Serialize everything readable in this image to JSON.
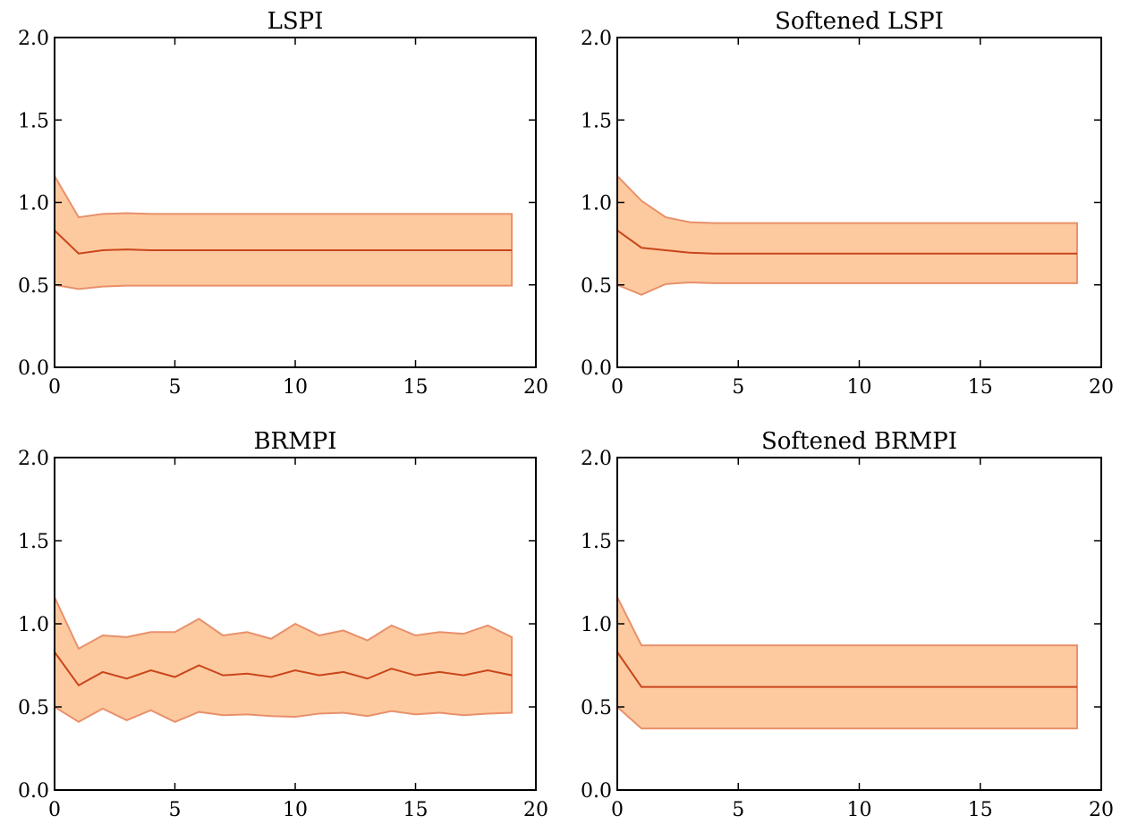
{
  "chart_data": [
    {
      "type": "line",
      "title": "LSPI",
      "xlim": [
        0,
        20
      ],
      "ylim": [
        0.0,
        2.0
      ],
      "xticks": [
        "0",
        "5",
        "10",
        "15",
        "20"
      ],
      "yticks": [
        "0.0",
        "0.5",
        "1.0",
        "1.5",
        "2.0"
      ],
      "grid": false,
      "series": [
        {
          "x": [
            0,
            1,
            2,
            3,
            4,
            5,
            6,
            7,
            8,
            9,
            10,
            11,
            12,
            13,
            14,
            15,
            16,
            17,
            18,
            19
          ],
          "mean": [
            0.83,
            0.69,
            0.71,
            0.715,
            0.71,
            0.71,
            0.71,
            0.71,
            0.71,
            0.71,
            0.71,
            0.71,
            0.71,
            0.71,
            0.71,
            0.71,
            0.71,
            0.71,
            0.71,
            0.71
          ],
          "upper": [
            1.16,
            0.91,
            0.93,
            0.935,
            0.93,
            0.93,
            0.93,
            0.93,
            0.93,
            0.93,
            0.93,
            0.93,
            0.93,
            0.93,
            0.93,
            0.93,
            0.93,
            0.93,
            0.93,
            0.93
          ],
          "lower": [
            0.5,
            0.475,
            0.49,
            0.495,
            0.495,
            0.495,
            0.495,
            0.495,
            0.495,
            0.495,
            0.495,
            0.495,
            0.495,
            0.495,
            0.495,
            0.495,
            0.495,
            0.495,
            0.495,
            0.495
          ]
        }
      ]
    },
    {
      "type": "line",
      "title": "Softened LSPI",
      "xlim": [
        0,
        20
      ],
      "ylim": [
        0.0,
        2.0
      ],
      "xticks": [
        "0",
        "5",
        "10",
        "15",
        "20"
      ],
      "yticks": [
        "0.0",
        "0.5",
        "1.0",
        "1.5",
        "2.0"
      ],
      "grid": false,
      "series": [
        {
          "x": [
            0,
            1,
            2,
            3,
            4,
            5,
            6,
            7,
            8,
            9,
            10,
            11,
            12,
            13,
            14,
            15,
            16,
            17,
            18,
            19
          ],
          "mean": [
            0.83,
            0.725,
            0.71,
            0.695,
            0.69,
            0.69,
            0.69,
            0.69,
            0.69,
            0.69,
            0.69,
            0.69,
            0.69,
            0.69,
            0.69,
            0.69,
            0.69,
            0.69,
            0.69,
            0.69
          ],
          "upper": [
            1.16,
            1.01,
            0.91,
            0.88,
            0.875,
            0.875,
            0.875,
            0.875,
            0.875,
            0.875,
            0.875,
            0.875,
            0.875,
            0.875,
            0.875,
            0.875,
            0.875,
            0.875,
            0.875,
            0.875
          ],
          "lower": [
            0.5,
            0.44,
            0.505,
            0.515,
            0.51,
            0.51,
            0.51,
            0.51,
            0.51,
            0.51,
            0.51,
            0.51,
            0.51,
            0.51,
            0.51,
            0.51,
            0.51,
            0.51,
            0.51,
            0.51
          ]
        }
      ]
    },
    {
      "type": "line",
      "title": "BRMPI",
      "xlim": [
        0,
        20
      ],
      "ylim": [
        0.0,
        2.0
      ],
      "xticks": [
        "0",
        "5",
        "10",
        "15",
        "20"
      ],
      "yticks": [
        "0.0",
        "0.5",
        "1.0",
        "1.5",
        "2.0"
      ],
      "grid": false,
      "series": [
        {
          "x": [
            0,
            1,
            2,
            3,
            4,
            5,
            6,
            7,
            8,
            9,
            10,
            11,
            12,
            13,
            14,
            15,
            16,
            17,
            18,
            19
          ],
          "mean": [
            0.83,
            0.63,
            0.71,
            0.67,
            0.72,
            0.68,
            0.75,
            0.69,
            0.7,
            0.68,
            0.72,
            0.69,
            0.71,
            0.67,
            0.73,
            0.69,
            0.71,
            0.69,
            0.72,
            0.69
          ],
          "upper": [
            1.16,
            0.85,
            0.93,
            0.92,
            0.95,
            0.95,
            1.03,
            0.93,
            0.95,
            0.91,
            1.0,
            0.93,
            0.96,
            0.9,
            0.99,
            0.93,
            0.95,
            0.94,
            0.99,
            0.92
          ],
          "lower": [
            0.5,
            0.41,
            0.49,
            0.42,
            0.48,
            0.41,
            0.47,
            0.45,
            0.455,
            0.445,
            0.44,
            0.46,
            0.465,
            0.445,
            0.475,
            0.455,
            0.465,
            0.45,
            0.46,
            0.465
          ]
        }
      ]
    },
    {
      "type": "line",
      "title": "Softened BRMPI",
      "xlim": [
        0,
        20
      ],
      "ylim": [
        0.0,
        2.0
      ],
      "xticks": [
        "0",
        "5",
        "10",
        "15",
        "20"
      ],
      "yticks": [
        "0.0",
        "0.5",
        "1.0",
        "1.5",
        "2.0"
      ],
      "grid": false,
      "series": [
        {
          "x": [
            0,
            1,
            2,
            3,
            4,
            5,
            6,
            7,
            8,
            9,
            10,
            11,
            12,
            13,
            14,
            15,
            16,
            17,
            18,
            19
          ],
          "mean": [
            0.83,
            0.62,
            0.62,
            0.62,
            0.62,
            0.62,
            0.62,
            0.62,
            0.62,
            0.62,
            0.62,
            0.62,
            0.62,
            0.62,
            0.62,
            0.62,
            0.62,
            0.62,
            0.62,
            0.62
          ],
          "upper": [
            1.16,
            0.87,
            0.87,
            0.87,
            0.87,
            0.87,
            0.87,
            0.87,
            0.87,
            0.87,
            0.87,
            0.87,
            0.87,
            0.87,
            0.87,
            0.87,
            0.87,
            0.87,
            0.87,
            0.87
          ],
          "lower": [
            0.5,
            0.37,
            0.37,
            0.37,
            0.37,
            0.37,
            0.37,
            0.37,
            0.37,
            0.37,
            0.37,
            0.37,
            0.37,
            0.37,
            0.37,
            0.37,
            0.37,
            0.37,
            0.37,
            0.37
          ]
        }
      ]
    }
  ],
  "colors": {
    "band_fill": "#fdcaa0",
    "band_edge": "#e8906a",
    "mean_line": "#c9461a",
    "axes": "#000000"
  }
}
